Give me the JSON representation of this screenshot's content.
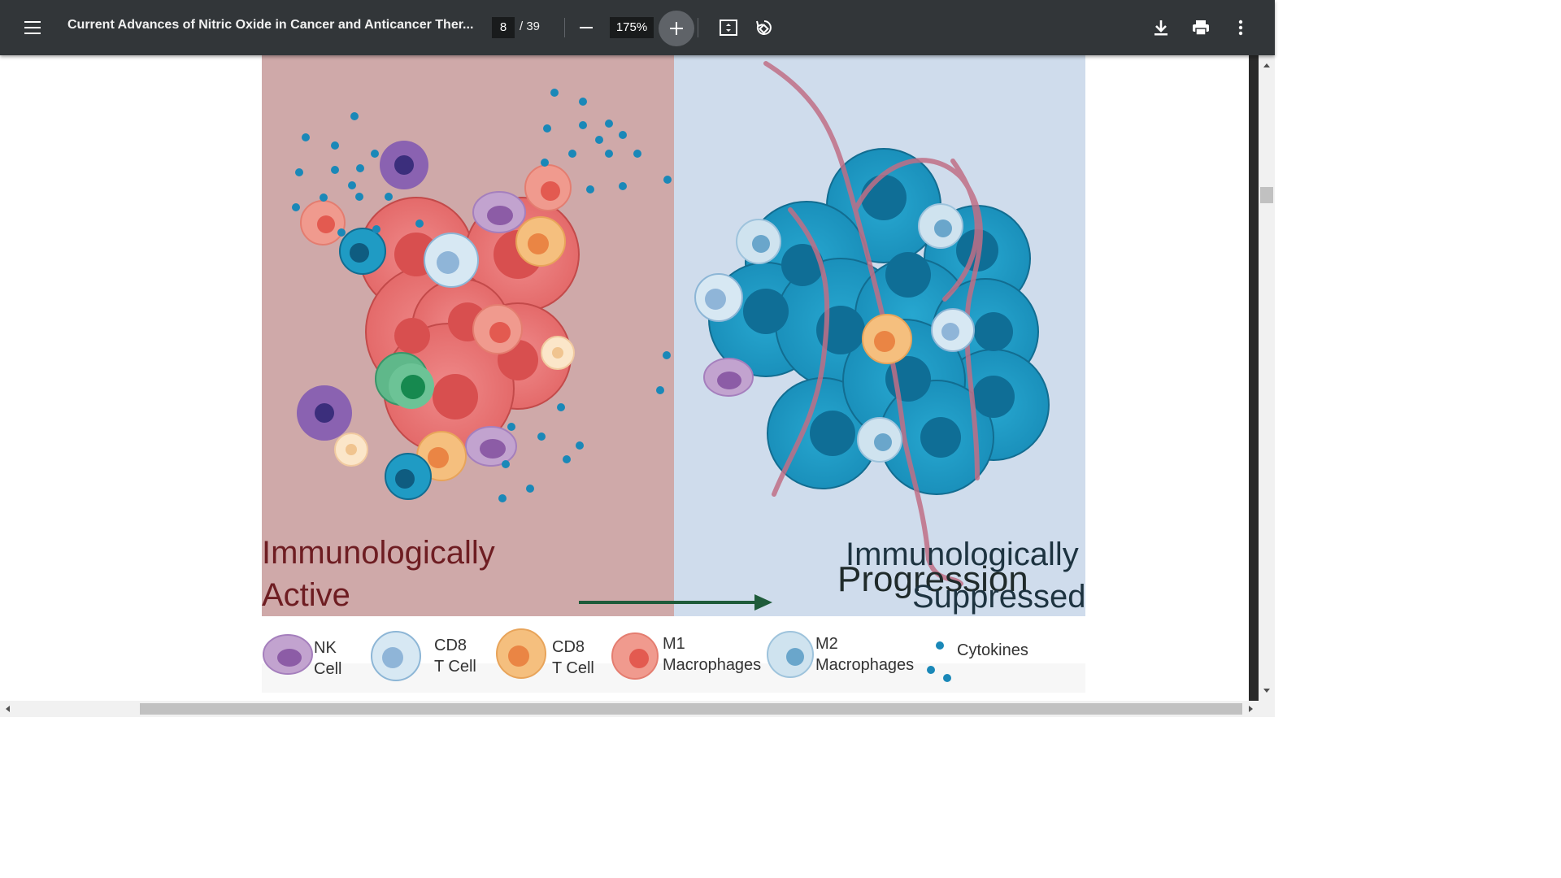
{
  "toolbar": {
    "title": "Current Advances of Nitric Oxide in Cancer and Anticancer Ther...",
    "page_current": "8",
    "page_total": "/ 39",
    "zoom": "175%",
    "icons": [
      "menu-icon",
      "zoom-out-icon",
      "zoom-in-icon",
      "fit-page-icon",
      "rotate-icon",
      "download-icon",
      "print-icon",
      "more-vert-icon"
    ]
  },
  "figure": {
    "left_label_line1": "Immunologically",
    "left_label_line2": "Active",
    "right_label_line1": "Immunologically",
    "right_label_line2": "Suppressed",
    "progression": "Progression",
    "colors": {
      "left_bg": "#cfa9a9",
      "right_bg": "#cfdcec",
      "tumor_red": "#e66a6a",
      "tumor_blue": "#1f9bc4",
      "arrow": "#1e5b3a"
    }
  },
  "legend": {
    "nk_1": "NK",
    "nk_2": "Cell",
    "cd8a_1": "CD8",
    "cd8a_2": "T Cell",
    "cd8b_1": "CD8",
    "cd8b_2": "T Cell",
    "m1_1": "M1",
    "m1_2": "Macrophages",
    "m2_1": "M2",
    "m2_2": "Macrophages",
    "cyt": "Cytokines"
  }
}
